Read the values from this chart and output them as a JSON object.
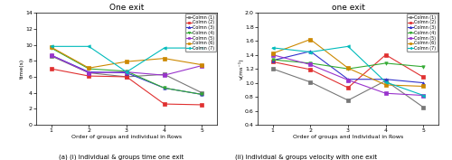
{
  "left": {
    "title": "One exit",
    "xlabel": "Order of groups and individual in Rows",
    "ylabel": "time(s)",
    "ylim": [
      0,
      14
    ],
    "yticks": [
      0,
      2,
      4,
      6,
      8,
      10,
      12,
      14
    ],
    "xlim": [
      0.6,
      5.4
    ],
    "xticks": [
      1,
      2,
      3,
      4,
      5
    ],
    "series": [
      {
        "label": "Colmn (1)",
        "color": "#777777",
        "marker": "s",
        "x": [
          1,
          2,
          3,
          4,
          5
        ],
        "y": [
          8.6,
          6.5,
          6.0,
          6.3,
          4.0
        ]
      },
      {
        "label": "Colmn (2)",
        "color": "#e03030",
        "marker": "s",
        "x": [
          1,
          2,
          3,
          4,
          5
        ],
        "y": [
          7.0,
          6.1,
          6.0,
          2.6,
          2.5
        ]
      },
      {
        "label": "Colmn (3)",
        "color": "#3333cc",
        "marker": "^",
        "x": [
          1,
          2,
          3,
          4,
          5
        ],
        "y": [
          8.7,
          6.6,
          6.5,
          4.6,
          3.8
        ]
      },
      {
        "label": "Colmn (4)",
        "color": "#33aa33",
        "marker": "v",
        "x": [
          1,
          2,
          3,
          4,
          5
        ],
        "y": [
          9.6,
          7.0,
          6.7,
          4.6,
          3.8
        ]
      },
      {
        "label": "Colmn (5)",
        "color": "#9933cc",
        "marker": "s",
        "x": [
          1,
          2,
          3,
          4,
          5
        ],
        "y": [
          8.7,
          6.5,
          6.6,
          6.2,
          7.4
        ]
      },
      {
        "label": "Colmn (6)",
        "color": "#cc8800",
        "marker": "s",
        "x": [
          1,
          2,
          3,
          4,
          5
        ],
        "y": [
          9.7,
          7.1,
          7.9,
          8.3,
          7.5
        ]
      },
      {
        "label": "Colmn (7)",
        "color": "#00bbbb",
        "marker": "<",
        "x": [
          1,
          2,
          3,
          4,
          5
        ],
        "y": [
          9.8,
          9.8,
          6.6,
          9.6,
          9.6
        ]
      }
    ]
  },
  "right": {
    "title": "one exit",
    "xlabel": "Order of groups and Individual in Rows",
    "ylabel": "v(ms⁻¹)",
    "ylim": [
      0.4,
      2.0
    ],
    "yticks": [
      0.4,
      0.6,
      0.8,
      1.0,
      1.2,
      1.4,
      1.6,
      1.8,
      2.0
    ],
    "xlim": [
      0.6,
      5.4
    ],
    "xticks": [
      1,
      2,
      3,
      4,
      5
    ],
    "series": [
      {
        "label": "Colmn (1)",
        "color": "#777777",
        "marker": "s",
        "x": [
          1,
          2,
          3,
          4,
          5
        ],
        "y": [
          1.2,
          1.01,
          0.75,
          1.03,
          0.65
        ]
      },
      {
        "label": "Colmn (2)",
        "color": "#e03030",
        "marker": "s",
        "x": [
          1,
          2,
          3,
          4,
          5
        ],
        "y": [
          1.3,
          1.19,
          0.93,
          1.4,
          1.08
        ]
      },
      {
        "label": "Colmn (3)",
        "color": "#3333cc",
        "marker": "^",
        "x": [
          1,
          2,
          3,
          4,
          5
        ],
        "y": [
          1.32,
          1.45,
          1.05,
          1.05,
          1.0
        ]
      },
      {
        "label": "Colmn (4)",
        "color": "#33aa33",
        "marker": "v",
        "x": [
          1,
          2,
          3,
          4,
          5
        ],
        "y": [
          1.33,
          1.28,
          1.2,
          1.28,
          1.23
        ]
      },
      {
        "label": "Colmn (5)",
        "color": "#9933cc",
        "marker": "s",
        "x": [
          1,
          2,
          3,
          4,
          5
        ],
        "y": [
          1.4,
          1.26,
          1.04,
          0.85,
          0.82
        ]
      },
      {
        "label": "Colmn (6)",
        "color": "#cc8800",
        "marker": "s",
        "x": [
          1,
          2,
          3,
          4,
          5
        ],
        "y": [
          1.42,
          1.62,
          1.21,
          0.97,
          0.95
        ]
      },
      {
        "label": "Colmn (7)",
        "color": "#00bbbb",
        "marker": "<",
        "x": [
          1,
          2,
          3,
          4,
          5
        ],
        "y": [
          1.5,
          1.44,
          1.52,
          1.01,
          0.82
        ]
      }
    ]
  },
  "caption_left": "(a) (i) Individual & groups time one exit",
  "caption_right": "(ii) Individual & groups velocity with one exit"
}
